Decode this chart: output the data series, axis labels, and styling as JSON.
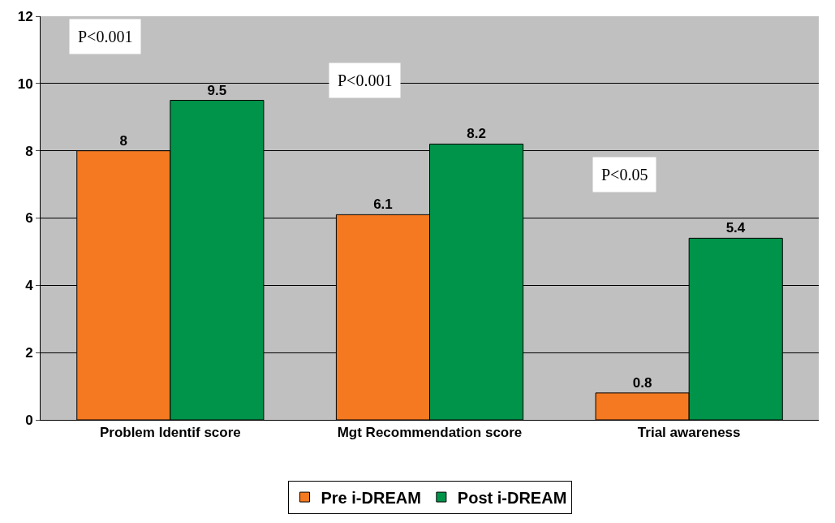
{
  "chart_data": {
    "type": "bar",
    "categories": [
      "Problem Identif score",
      "Mgt Recommendation score",
      "Trial awareness"
    ],
    "series": [
      {
        "name": "Pre i-DREAM",
        "color": "#f47920",
        "values": [
          8,
          6.1,
          0.8
        ]
      },
      {
        "name": "Post i-DREAM",
        "color": "#00934a",
        "values": [
          9.5,
          8.2,
          5.4
        ]
      }
    ],
    "ylim": [
      0,
      12
    ],
    "yticks": [
      0,
      2,
      4,
      6,
      8,
      10,
      12
    ],
    "grid": "y",
    "legend": "bottom",
    "data_labels": true,
    "annotations": [
      "P<0.001",
      "P<0.001",
      "P<0.05"
    ]
  }
}
